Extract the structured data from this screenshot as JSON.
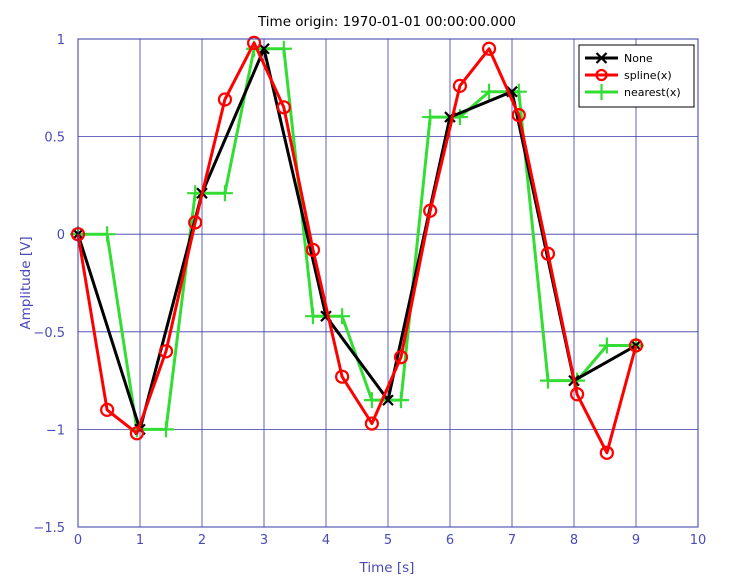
{
  "chart_data": {
    "type": "line",
    "title": "Time origin: 1970-01-01 00:00:00.000",
    "xlabel": "Time  [s]",
    "ylabel": "Amplitude  [V]",
    "xlim": [
      0,
      10
    ],
    "ylim": [
      -1.5,
      1
    ],
    "xticks": [
      0,
      1,
      2,
      3,
      4,
      5,
      6,
      7,
      8,
      9,
      10
    ],
    "yticks": [
      -1.5,
      -1,
      -0.5,
      0,
      0.5,
      1
    ],
    "xtick_labels": [
      "0",
      "1",
      "2",
      "3",
      "4",
      "5",
      "6",
      "7",
      "8",
      "9",
      "10"
    ],
    "ytick_labels": [
      "−1.5",
      "−1",
      "−0.5",
      "0",
      "0.5",
      "1"
    ],
    "grid": true,
    "legend_position": "top-right",
    "series": [
      {
        "name": "None",
        "color": "#000000",
        "marker": "x",
        "step": false,
        "x": [
          0,
          1,
          2,
          3,
          4,
          5,
          6,
          7,
          8,
          9
        ],
        "y": [
          0,
          -1.0,
          0.21,
          0.95,
          -0.42,
          -0.85,
          0.6,
          0.73,
          -0.75,
          -0.57
        ]
      },
      {
        "name": "spline(x)",
        "color": "#ff0000",
        "marker": "o",
        "step": false,
        "x": [
          0,
          0.47,
          0.95,
          1.42,
          1.89,
          2.37,
          2.84,
          3.32,
          3.79,
          4.26,
          4.74,
          5.21,
          5.68,
          6.16,
          6.63,
          7.11,
          7.58,
          8.05,
          8.53,
          9.0
        ],
        "y": [
          0,
          -0.9,
          -1.02,
          -0.6,
          0.06,
          0.69,
          0.98,
          0.65,
          -0.08,
          -0.73,
          -0.97,
          -0.63,
          0.12,
          0.76,
          0.95,
          0.61,
          -0.1,
          -0.82,
          -1.12,
          -0.57
        ]
      },
      {
        "name": "nearest(x)",
        "color": "#33dd33",
        "marker": "+",
        "step": true,
        "x": [
          0,
          0.47,
          0.95,
          1.42,
          1.89,
          2.37,
          2.84,
          3.32,
          3.79,
          4.26,
          4.74,
          5.21,
          5.68,
          6.16,
          6.63,
          7.11,
          7.58,
          8.05,
          8.53,
          9.0
        ],
        "y": [
          0,
          0,
          -1.0,
          -1.0,
          0.21,
          0.21,
          0.95,
          0.95,
          -0.42,
          -0.42,
          -0.85,
          -0.85,
          0.6,
          0.6,
          0.73,
          0.73,
          -0.75,
          -0.75,
          -0.57,
          -0.57
        ]
      }
    ]
  }
}
